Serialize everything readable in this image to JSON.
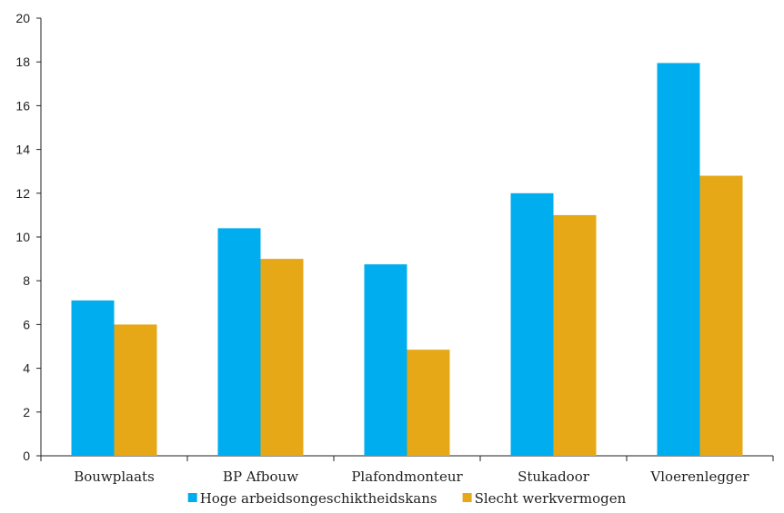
{
  "chart_data": {
    "type": "bar",
    "categories": [
      "Bouwplaats",
      "BP Afbouw",
      "Plafondmonteur",
      "Stukadoor",
      "Vloerenlegger"
    ],
    "series": [
      {
        "name": "Hoge arbeidsongeschiktheidskans",
        "color": "#00AEEF",
        "values": [
          7.1,
          10.4,
          8.75,
          12.0,
          17.95
        ]
      },
      {
        "name": "Slecht werkvermogen",
        "color": "#E6A817",
        "values": [
          6.0,
          9.0,
          4.85,
          11.0,
          12.8
        ]
      }
    ],
    "ylim": [
      0,
      20
    ],
    "yticks": [
      0,
      2,
      4,
      6,
      8,
      10,
      12,
      14,
      16,
      18,
      20
    ],
    "legend_position": "bottom",
    "grid": false
  }
}
